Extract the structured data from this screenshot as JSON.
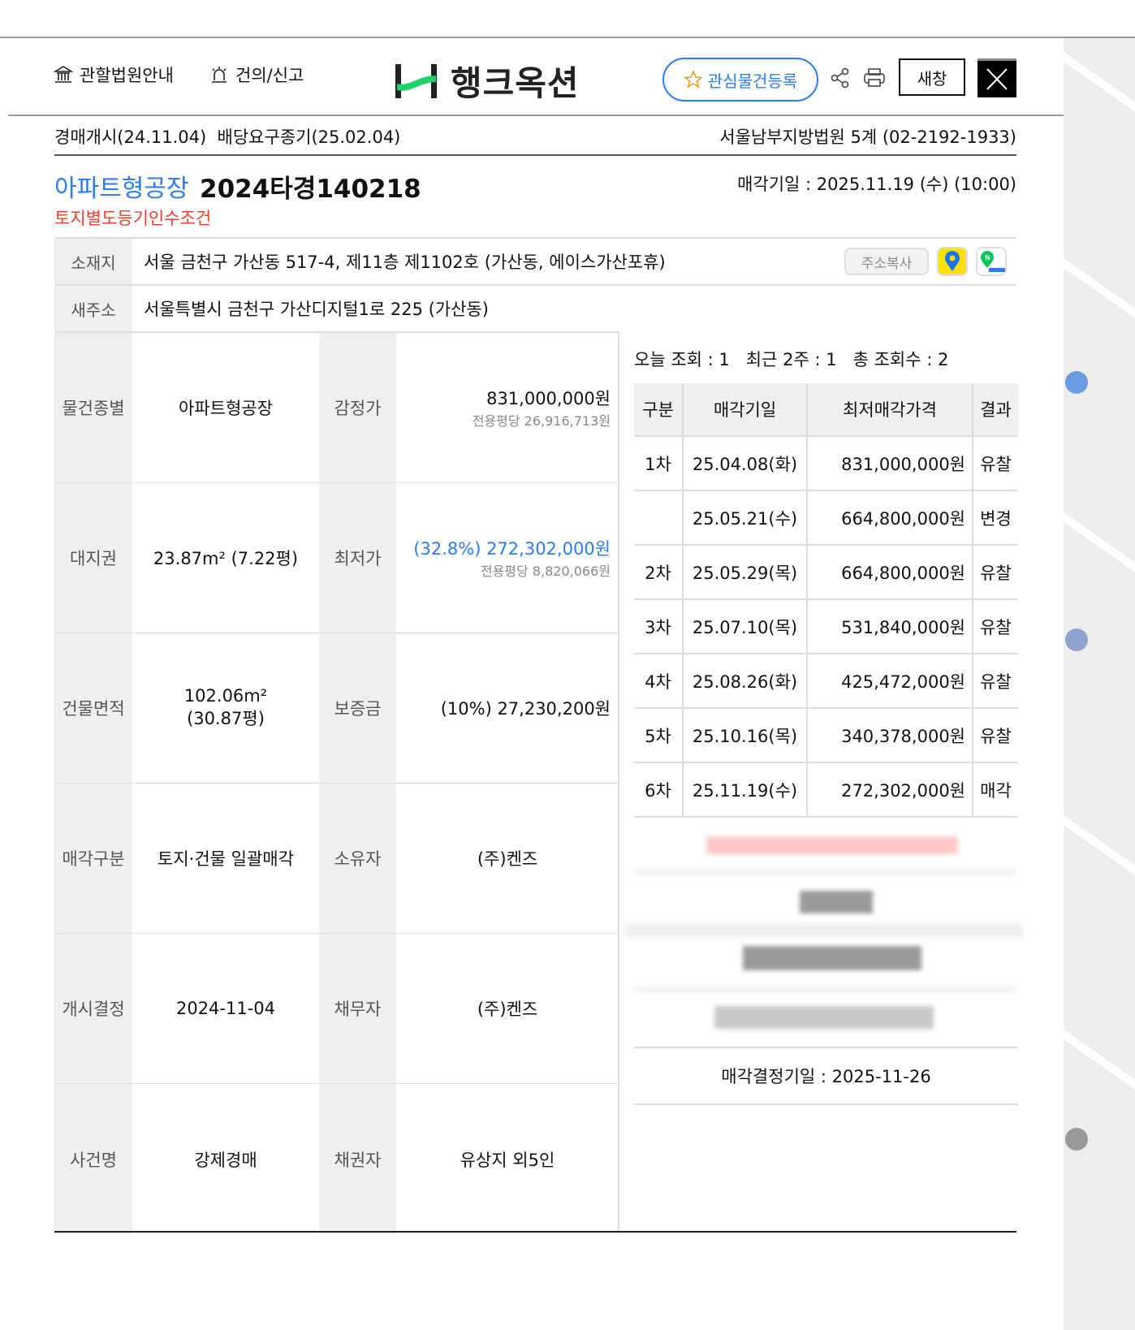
{
  "header": {
    "court_info_label": "관할법원안내",
    "report_label": "건의/신고",
    "logo_text": "행크옥션",
    "favorite_label": "관심물건등록",
    "new_window_label": "새창"
  },
  "summary": {
    "auction_start": "경매개시(24.11.04)",
    "claim_deadline": "배당요구종기(25.02.04)",
    "court": "서울남부지방법원 5계 (02-2192-1933)",
    "category": "아파트형공장",
    "case_number": "2024타경140218",
    "sale_date": "매각기일 : 2025.11.19 (수) (10:00)",
    "condition": "토지별도등기인수조건"
  },
  "address": {
    "location_label": "소재지",
    "location": "서울 금천구 가산동 517-4, 제11층 제1102호 (가산동, 에이스가산포휴)",
    "copy_label": "주소복사",
    "new_address_label": "새주소",
    "new_address": "서울특별시 금천구 가산디지털1로 225 (가산동)"
  },
  "details": [
    {
      "label1": "물건종별",
      "value1": "아파트형공장",
      "label2": "감정가",
      "value2": "831,000,000원",
      "sub2": "전용평당 26,916,713원"
    },
    {
      "label1": "대지권",
      "value1": "23.87m² (7.22평)",
      "label2": "최저가",
      "value2": "(32.8%) 272,302,000원",
      "sub2": "전용평당 8,820,066원"
    },
    {
      "label1": "건물면적",
      "value1": "102.06m²",
      "value1b": "(30.87평)",
      "label2": "보증금",
      "value2": "(10%) 27,230,200원"
    },
    {
      "label1": "매각구분",
      "value1": "토지·건물 일괄매각",
      "label2": "소유자",
      "value2": "(주)켄즈"
    },
    {
      "label1": "개시결정",
      "value1": "2024-11-04",
      "label2": "채무자",
      "value2": "(주)켄즈"
    },
    {
      "label1": "사건명",
      "value1": "강제경매",
      "label2": "채권자",
      "value2": "유상지 외5인"
    }
  ],
  "views": {
    "today": "오늘 조회 : 1",
    "recent": "최근 2주 : 1",
    "total": "총 조회수 : 2"
  },
  "history": {
    "headers": [
      "구분",
      "매각기일",
      "최저매각가격",
      "결과"
    ],
    "rows": [
      [
        "1차",
        "25.04.08(화)",
        "831,000,000원",
        "유찰"
      ],
      [
        "",
        "25.05.21(수)",
        "664,800,000원",
        "변경"
      ],
      [
        "2차",
        "25.05.29(목)",
        "664,800,000원",
        "유찰"
      ],
      [
        "3차",
        "25.07.10(목)",
        "531,840,000원",
        "유찰"
      ],
      [
        "4차",
        "25.08.26(화)",
        "425,472,000원",
        "유찰"
      ],
      [
        "5차",
        "25.10.16(목)",
        "340,378,000원",
        "유찰"
      ],
      [
        "6차",
        "25.11.19(수)",
        "272,302,000원",
        "매각"
      ]
    ]
  },
  "decision_date": "매각결정기일 : 2025-11-26",
  "colors": {
    "accent": "#2a7cf6",
    "warning": "#e8412c",
    "brand_green": "#1fd16a"
  }
}
